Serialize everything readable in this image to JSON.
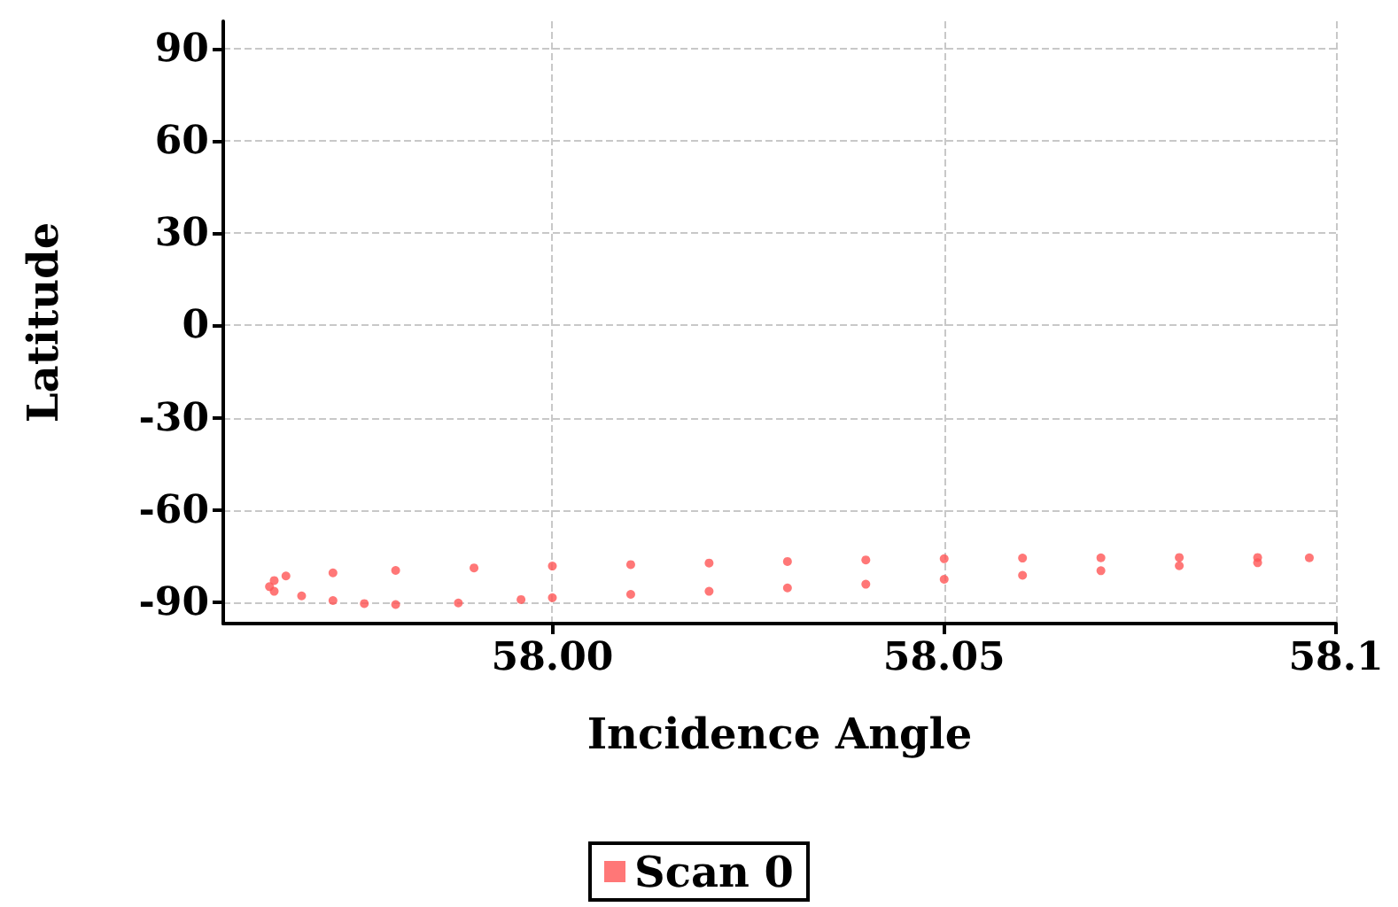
{
  "chart_data": {
    "type": "scatter",
    "xlabel": "Incidence Angle",
    "ylabel": "Latitude",
    "xlim": [
      57.958,
      58.1
    ],
    "xticks": [
      {
        "value": 58.0,
        "label": "58.00"
      },
      58.05,
      58.1
    ],
    "ylim": [
      -97,
      99
    ],
    "yticks": [
      -90,
      -60,
      -30,
      0,
      30,
      60,
      90
    ],
    "grid": true,
    "legend": "bottom",
    "marker": "circle",
    "series": [
      {
        "name": "Scan 0",
        "color": "#ff5555",
        "x": [
          58.0966,
          58.09,
          58.08,
          58.07,
          58.06,
          58.05,
          58.04,
          58.03,
          58.02,
          58.01,
          58.0,
          57.99,
          57.98,
          57.972,
          57.966,
          57.9645,
          57.9639,
          57.9645,
          57.968,
          57.972,
          57.976,
          57.98,
          57.988,
          57.996,
          58.0,
          58.01,
          58.02,
          58.03,
          58.04,
          58.05,
          58.06,
          58.07,
          58.08,
          58.09
        ],
        "values": [
          -75.6,
          -75.5,
          -75.5,
          -75.6,
          -75.7,
          -75.9,
          -76.3,
          -76.8,
          -77.3,
          -77.8,
          -78.3,
          -78.9,
          -79.7,
          -80.5,
          -81.5,
          -83,
          -85,
          -86.5,
          -88,
          -89.5,
          -90.5,
          -90.8,
          -90.3,
          -89.2,
          -88.6,
          -87.5,
          -86.5,
          -85.4,
          -84.2,
          -82.6,
          -81.3,
          -79.8,
          -78.2,
          -77.2
        ]
      }
    ]
  }
}
